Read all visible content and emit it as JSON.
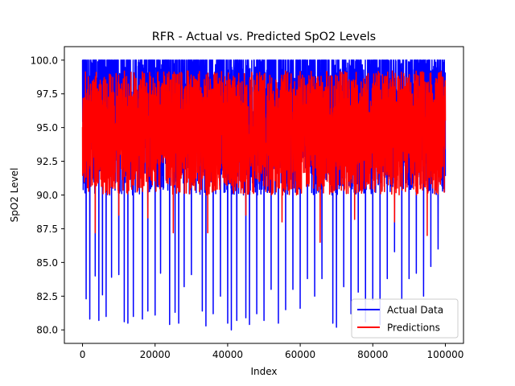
{
  "chart_data": {
    "type": "line",
    "title": "RFR - Actual vs. Predicted SpO2 Levels",
    "xlabel": "Index",
    "ylabel": "SpO2 Level",
    "xlim": [
      -5000,
      105000
    ],
    "ylim": [
      79.0,
      101.0
    ],
    "xticks": [
      0,
      20000,
      40000,
      60000,
      80000,
      100000
    ],
    "xtick_labels": [
      "0",
      "20000",
      "40000",
      "60000",
      "80000",
      "100000"
    ],
    "yticks": [
      80.0,
      82.5,
      85.0,
      87.5,
      90.0,
      92.5,
      95.0,
      97.5,
      100.0
    ],
    "ytick_labels": [
      "80.0",
      "82.5",
      "85.0",
      "87.5",
      "90.0",
      "92.5",
      "95.0",
      "97.5",
      "100.0"
    ],
    "grid": false,
    "legend_position": "bottom-right",
    "series": [
      {
        "name": "Actual Data",
        "color": "#0000ff",
        "x_range": [
          0,
          100000
        ],
        "typical_range": [
          90.0,
          100.0
        ],
        "min": 80.0,
        "max": 100.0,
        "dips": [
          {
            "x": 1000,
            "y": 82.3
          },
          {
            "x": 2000,
            "y": 80.8
          },
          {
            "x": 3500,
            "y": 84.0
          },
          {
            "x": 4500,
            "y": 80.7
          },
          {
            "x": 5500,
            "y": 82.6
          },
          {
            "x": 6500,
            "y": 81.0
          },
          {
            "x": 8000,
            "y": 83.9
          },
          {
            "x": 10000,
            "y": 84.1
          },
          {
            "x": 11500,
            "y": 80.6
          },
          {
            "x": 12500,
            "y": 80.5
          },
          {
            "x": 14000,
            "y": 81.0
          },
          {
            "x": 16500,
            "y": 80.8
          },
          {
            "x": 18000,
            "y": 81.4
          },
          {
            "x": 20000,
            "y": 81.1
          },
          {
            "x": 21500,
            "y": 84.2
          },
          {
            "x": 24000,
            "y": 80.4
          },
          {
            "x": 25500,
            "y": 81.3
          },
          {
            "x": 26500,
            "y": 80.5
          },
          {
            "x": 28000,
            "y": 83.2
          },
          {
            "x": 30000,
            "y": 84.1
          },
          {
            "x": 33000,
            "y": 81.4
          },
          {
            "x": 34000,
            "y": 80.3
          },
          {
            "x": 36000,
            "y": 81.2
          },
          {
            "x": 38000,
            "y": 82.5
          },
          {
            "x": 40000,
            "y": 80.5
          },
          {
            "x": 41000,
            "y": 80.0
          },
          {
            "x": 42500,
            "y": 80.7
          },
          {
            "x": 45000,
            "y": 80.9
          },
          {
            "x": 46000,
            "y": 80.4
          },
          {
            "x": 48000,
            "y": 81.2
          },
          {
            "x": 50000,
            "y": 80.7
          },
          {
            "x": 52000,
            "y": 83.0
          },
          {
            "x": 54000,
            "y": 80.5
          },
          {
            "x": 56000,
            "y": 81.5
          },
          {
            "x": 58000,
            "y": 83.0
          },
          {
            "x": 60000,
            "y": 81.6
          },
          {
            "x": 62000,
            "y": 83.8
          },
          {
            "x": 64000,
            "y": 82.5
          },
          {
            "x": 66000,
            "y": 83.8
          },
          {
            "x": 69000,
            "y": 80.5
          },
          {
            "x": 70000,
            "y": 80.2
          },
          {
            "x": 72000,
            "y": 83.2
          },
          {
            "x": 74000,
            "y": 81.2
          },
          {
            "x": 76000,
            "y": 82.8
          },
          {
            "x": 78000,
            "y": 80.6
          },
          {
            "x": 80000,
            "y": 82.2
          },
          {
            "x": 82000,
            "y": 80.4
          },
          {
            "x": 84000,
            "y": 83.8
          },
          {
            "x": 86000,
            "y": 85.8
          },
          {
            "x": 88000,
            "y": 82.3
          },
          {
            "x": 90000,
            "y": 83.8
          },
          {
            "x": 92000,
            "y": 84.2
          },
          {
            "x": 94000,
            "y": 82.5
          },
          {
            "x": 96000,
            "y": 84.7
          },
          {
            "x": 98000,
            "y": 86.0
          }
        ]
      },
      {
        "name": "Predictions",
        "color": "#ff0000",
        "x_range": [
          0,
          100000
        ],
        "typical_range": [
          90.0,
          99.2
        ],
        "min": 86.5,
        "max": 99.7,
        "dips": [
          {
            "x": 3500,
            "y": 87.2
          },
          {
            "x": 10000,
            "y": 88.5
          },
          {
            "x": 18000,
            "y": 88.3
          },
          {
            "x": 25000,
            "y": 87.2
          },
          {
            "x": 34500,
            "y": 87.2
          },
          {
            "x": 45000,
            "y": 88.5
          },
          {
            "x": 55000,
            "y": 88.0
          },
          {
            "x": 65500,
            "y": 86.5
          },
          {
            "x": 75000,
            "y": 88.2
          },
          {
            "x": 86000,
            "y": 88.0
          },
          {
            "x": 95000,
            "y": 87.0
          }
        ]
      }
    ]
  }
}
